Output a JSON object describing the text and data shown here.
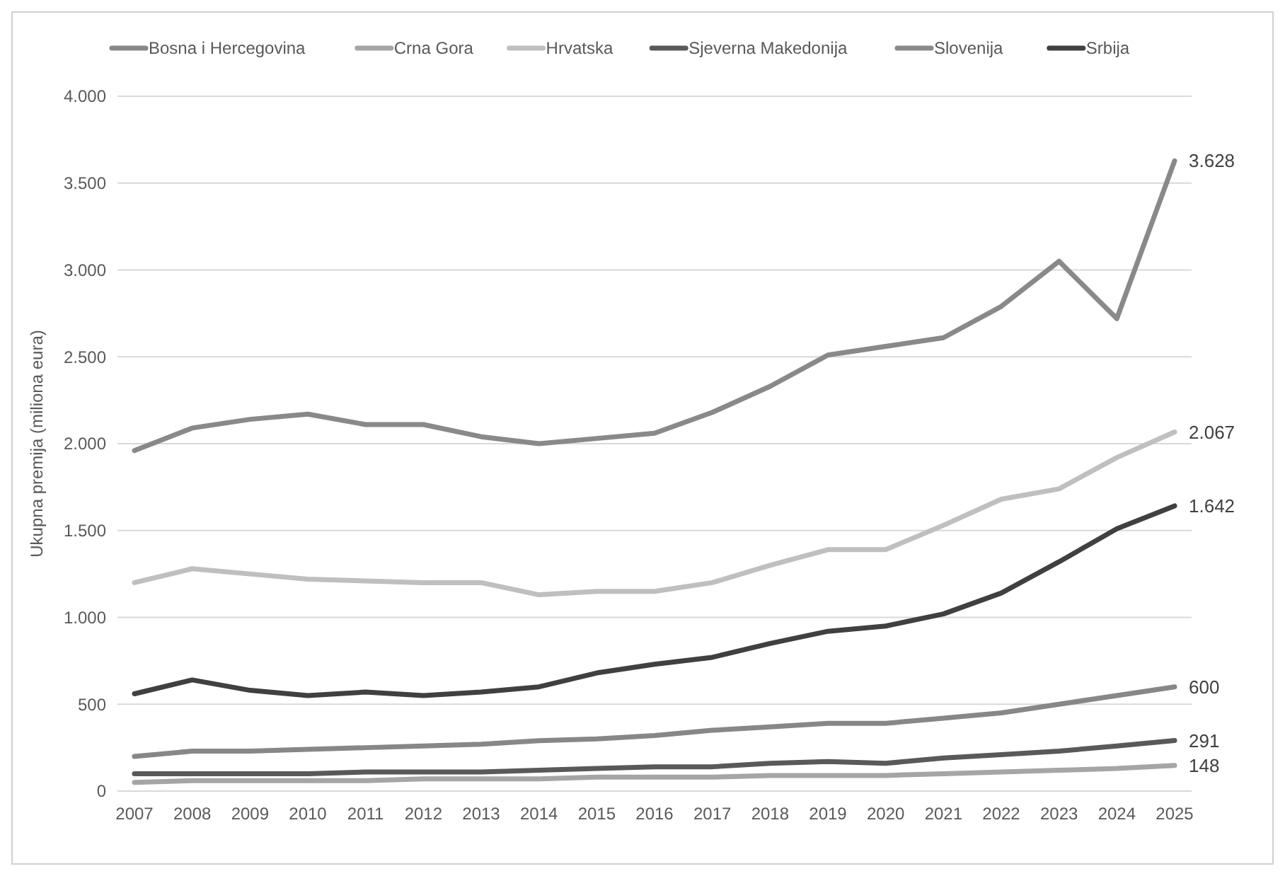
{
  "chart_data": {
    "type": "line",
    "ylabel": "Ukupna premija (miliona eura)",
    "categories": [
      "2007",
      "2008",
      "2009",
      "2010",
      "2011",
      "2012",
      "2013",
      "2014",
      "2015",
      "2016",
      "2017",
      "2018",
      "2019",
      "2020",
      "2021",
      "2022",
      "2023",
      "2024",
      "2025"
    ],
    "ylim": [
      0,
      4000
    ],
    "yticks": [
      {
        "value": 0,
        "label": "0"
      },
      {
        "value": 500,
        "label": "500"
      },
      {
        "value": 1000,
        "label": "1.000"
      },
      {
        "value": 1500,
        "label": "1.500"
      },
      {
        "value": 2000,
        "label": "2.000"
      },
      {
        "value": 2500,
        "label": "2.500"
      },
      {
        "value": 3000,
        "label": "3.000"
      },
      {
        "value": 3500,
        "label": "3.500"
      },
      {
        "value": 4000,
        "label": "4.000"
      }
    ],
    "grid": "y",
    "legend": "top",
    "line_style": "solid",
    "series": [
      {
        "name": "Bosna i Hercegovina",
        "color": "#878787",
        "values": [
          200,
          230,
          230,
          240,
          250,
          260,
          270,
          290,
          300,
          320,
          350,
          370,
          390,
          390,
          420,
          450,
          500,
          550,
          600
        ],
        "value_labels": [
          null,
          null,
          null,
          null,
          null,
          null,
          null,
          null,
          null,
          null,
          null,
          null,
          null,
          null,
          null,
          null,
          null,
          null,
          "600"
        ]
      },
      {
        "name": "Crna Gora",
        "color": "#a5a5a5",
        "values": [
          50,
          60,
          60,
          60,
          60,
          70,
          70,
          70,
          80,
          80,
          80,
          90,
          90,
          90,
          100,
          110,
          120,
          130,
          148
        ],
        "value_labels": [
          null,
          null,
          null,
          null,
          null,
          null,
          null,
          null,
          null,
          null,
          null,
          null,
          null,
          null,
          null,
          null,
          null,
          null,
          "148"
        ]
      },
      {
        "name": "Hrvatska",
        "color": "#bfbfbf",
        "values": [
          1200,
          1280,
          1250,
          1220,
          1210,
          1200,
          1200,
          1130,
          1150,
          1150,
          1200,
          1300,
          1390,
          1390,
          1530,
          1680,
          1740,
          1920,
          2067
        ],
        "value_labels": [
          null,
          null,
          null,
          null,
          null,
          null,
          null,
          null,
          null,
          null,
          null,
          null,
          null,
          null,
          null,
          null,
          null,
          null,
          "2.067"
        ]
      },
      {
        "name": "Sjeverna Makedonija",
        "color": "#595959",
        "values": [
          100,
          100,
          100,
          100,
          110,
          110,
          110,
          120,
          130,
          140,
          140,
          160,
          170,
          160,
          190,
          210,
          230,
          260,
          291
        ],
        "value_labels": [
          null,
          null,
          null,
          null,
          null,
          null,
          null,
          null,
          null,
          null,
          null,
          null,
          null,
          null,
          null,
          null,
          null,
          null,
          "291"
        ]
      },
      {
        "name": "Slovenija",
        "color": "#898989",
        "values": [
          1960,
          2090,
          2140,
          2170,
          2110,
          2110,
          2040,
          2000,
          2030,
          2060,
          2180,
          2330,
          2510,
          2560,
          2610,
          2790,
          3050,
          2720,
          3628
        ],
        "value_labels": [
          null,
          null,
          null,
          null,
          null,
          null,
          null,
          null,
          null,
          null,
          null,
          null,
          null,
          null,
          null,
          null,
          null,
          null,
          "3.628"
        ]
      },
      {
        "name": "Srbija",
        "color": "#404040",
        "values": [
          560,
          640,
          580,
          550,
          570,
          550,
          570,
          600,
          680,
          730,
          770,
          850,
          920,
          950,
          1020,
          1140,
          1320,
          1510,
          1642
        ],
        "value_labels": [
          null,
          null,
          null,
          null,
          null,
          null,
          null,
          null,
          null,
          null,
          null,
          null,
          null,
          null,
          null,
          null,
          null,
          null,
          "1.642"
        ]
      }
    ]
  }
}
